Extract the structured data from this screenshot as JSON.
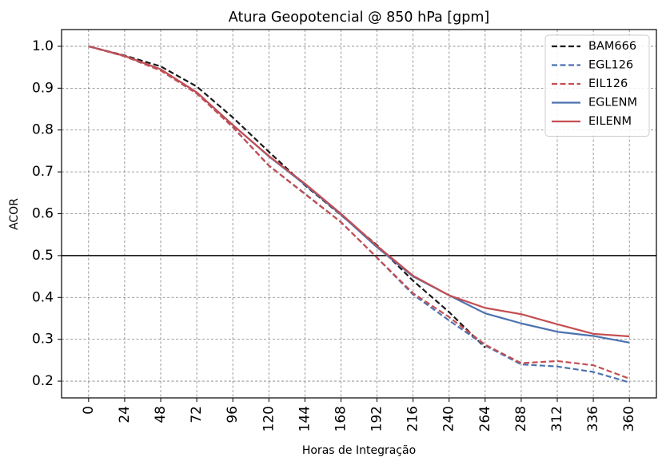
{
  "chart_data": {
    "type": "line",
    "title": "Atura Geopotencial @ 850 hPa [gpm]",
    "xlabel": "Horas de Integração",
    "ylabel": "ACOR",
    "x": [
      0,
      24,
      48,
      72,
      96,
      120,
      144,
      168,
      192,
      216,
      240,
      264,
      288,
      312,
      336,
      360
    ],
    "xticks": [
      "0",
      "24",
      "48",
      "72",
      "96",
      "120",
      "144",
      "168",
      "192",
      "216",
      "240",
      "264",
      "288",
      "312",
      "336",
      "360"
    ],
    "yticks": [
      "0.2",
      "0.3",
      "0.4",
      "0.5",
      "0.6",
      "0.7",
      "0.8",
      "0.9",
      "1.0"
    ],
    "ylim": [
      0.16,
      1.04
    ],
    "xlim": [
      -18,
      378
    ],
    "grid": true,
    "legend_position": "top-right",
    "reference_line": 0.5,
    "series": [
      {
        "name": "BAM666",
        "color": "#1a1a1a",
        "dashed": true,
        "values": [
          1.0,
          0.978,
          0.952,
          0.904,
          0.83,
          0.748,
          0.668,
          0.597,
          0.525,
          0.44,
          0.365,
          0.28,
          null,
          null,
          null,
          null
        ]
      },
      {
        "name": "EGL126",
        "color": "#4c72b0",
        "dashed": true,
        "values": [
          1.0,
          0.977,
          0.943,
          0.888,
          0.807,
          0.715,
          0.648,
          0.58,
          0.495,
          0.407,
          0.345,
          0.285,
          0.24,
          0.235,
          0.222,
          0.197
        ]
      },
      {
        "name": "EIL126",
        "color": "#c44e52",
        "dashed": true,
        "values": [
          1.0,
          0.976,
          0.942,
          0.887,
          0.807,
          0.715,
          0.647,
          0.58,
          0.495,
          0.41,
          0.353,
          0.287,
          0.243,
          0.248,
          0.238,
          0.206
        ]
      },
      {
        "name": "EGLENM",
        "color": "#4c72b0",
        "dashed": false,
        "values": [
          1.0,
          0.977,
          0.945,
          0.89,
          0.812,
          0.737,
          0.67,
          0.598,
          0.52,
          0.45,
          0.405,
          0.362,
          0.338,
          0.318,
          0.308,
          0.292
        ]
      },
      {
        "name": "EILENM",
        "color": "#c44e52",
        "dashed": false,
        "values": [
          1.0,
          0.977,
          0.945,
          0.89,
          0.812,
          0.738,
          0.672,
          0.6,
          0.523,
          0.452,
          0.405,
          0.375,
          0.36,
          0.336,
          0.313,
          0.307
        ]
      }
    ]
  }
}
